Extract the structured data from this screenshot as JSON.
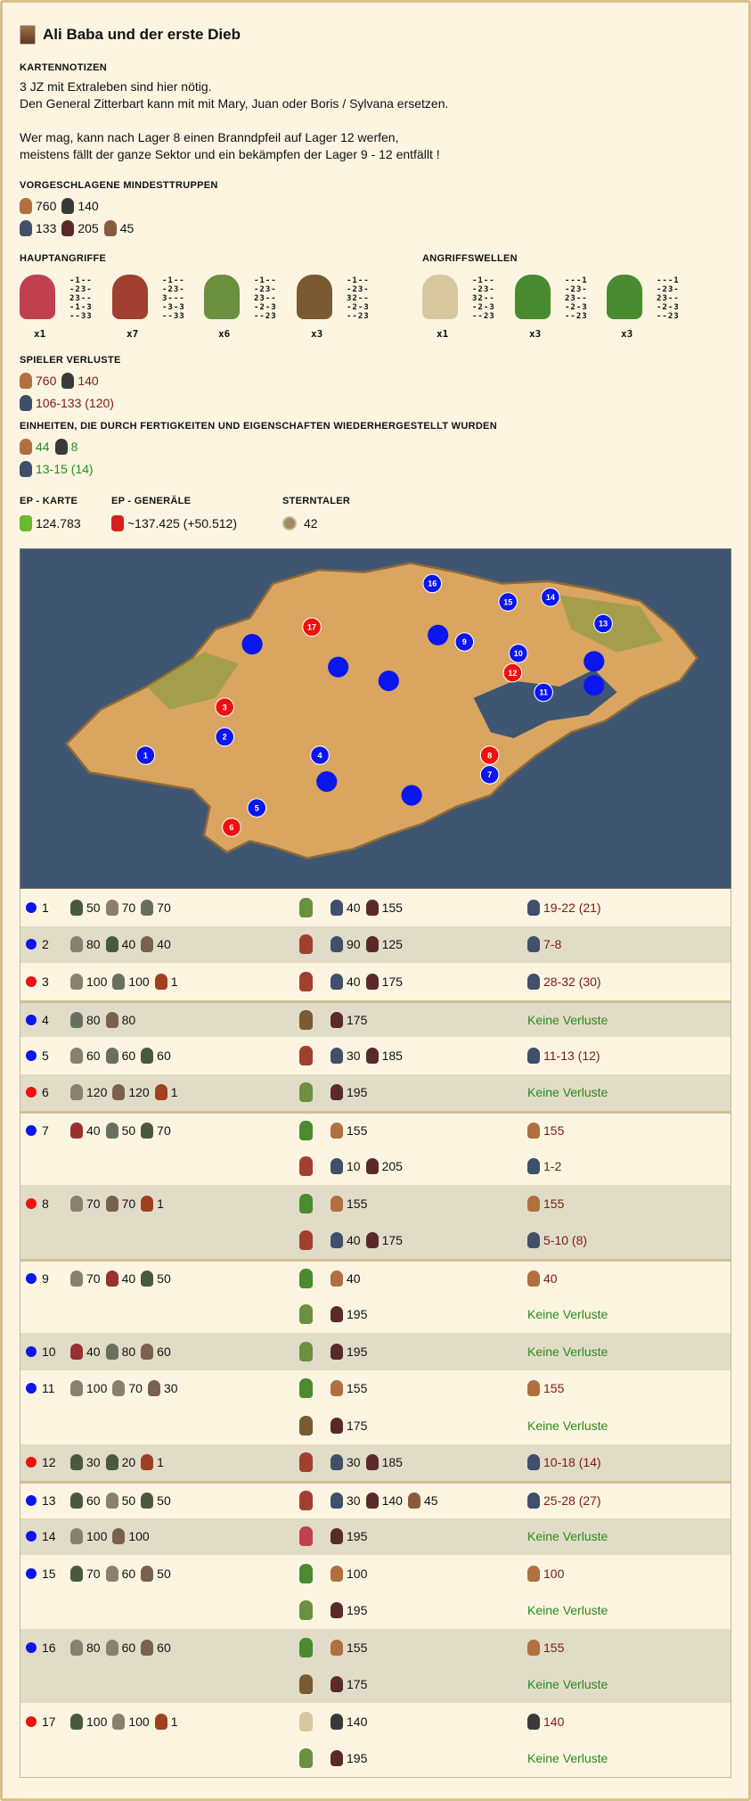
{
  "title": "Ali Baba und der erste Dieb",
  "notes": {
    "label": "KARTENNOTIZEN",
    "lines": [
      "3 JZ mit Extraleben sind hier nötig.",
      "Den General Zitterbart kann mit mit Mary, Juan oder Boris / Sylvana ersetzen.",
      "",
      "Wer mag, kann nach Lager 8 einen Branndpfeil auf Lager 12 werfen,",
      "meistens fällt der ganze Sektor und ein bekämpfen der Lager 9 - 12 entfällt !"
    ]
  },
  "min_troops": {
    "label": "VORGESCHLAGENE MINDESTTRUPPEN",
    "rows": [
      [
        {
          "unit": "recruit",
          "count": "760"
        },
        {
          "unit": "bowman",
          "count": "140"
        }
      ],
      [
        {
          "unit": "militia",
          "count": "133"
        },
        {
          "unit": "cavalry",
          "count": "205"
        },
        {
          "unit": "longbow",
          "count": "45"
        }
      ]
    ]
  },
  "main_attacks": {
    "label": "HAUPTANGRIFFE",
    "generals": [
      {
        "portrait": "general-red",
        "grid": [
          "-1--",
          "-23-",
          "23--",
          "-1-3",
          "--33"
        ],
        "mult": "x1"
      },
      {
        "portrait": "general-helmet",
        "grid": [
          "-1--",
          "-23-",
          "3---",
          "-3-3",
          "--33"
        ],
        "mult": "x7"
      },
      {
        "portrait": "general-woman",
        "grid": [
          "-1--",
          "-23-",
          "23--",
          "-2-3",
          "--23"
        ],
        "mult": "x6"
      },
      {
        "portrait": "general-old",
        "grid": [
          "-1--",
          "-23-",
          "32--",
          "-2-3",
          "--23"
        ],
        "mult": "x3"
      }
    ]
  },
  "waves": {
    "label": "ANGRIFFSWELLEN",
    "generals": [
      {
        "portrait": "general-viking",
        "grid": [
          "-1--",
          "-23-",
          "32--",
          "-2-3",
          "--23"
        ],
        "mult": "x1"
      },
      {
        "portrait": "general-green",
        "grid": [
          "---1",
          "-23-",
          "23--",
          "-2-3",
          "--23"
        ],
        "mult": "x3"
      },
      {
        "portrait": "general-green",
        "grid": [
          "---1",
          "-23-",
          "23--",
          "-2-3",
          "--23"
        ],
        "mult": "x3"
      }
    ]
  },
  "player_losses": {
    "label": "SPIELER VERLUSTE",
    "rows": [
      [
        {
          "unit": "recruit",
          "count": "760"
        },
        {
          "unit": "bowman",
          "count": "140"
        }
      ],
      [
        {
          "unit": "militia",
          "count": "106-133 (120)"
        }
      ]
    ]
  },
  "restored": {
    "label": "EINHEITEN, DIE DURCH FERTIGKEITEN UND EIGENSCHAFTEN WIEDERHERGESTELLT WURDEN",
    "rows": [
      [
        {
          "unit": "recruit",
          "count": "44"
        },
        {
          "unit": "bowman",
          "count": "8"
        }
      ],
      [
        {
          "unit": "militia",
          "count": "13-15 (14)"
        }
      ]
    ]
  },
  "stats": {
    "ep_map_label": "EP - KARTE",
    "ep_map": "124.783",
    "ep_gen_label": "EP - GENERÄLE",
    "ep_gen": "~137.425 (+50.512)",
    "star_label": "STERNTALER",
    "star": "42"
  },
  "colors": {
    "blue_camp": "#0a16f0",
    "red_camp": "#f01010",
    "loss": "#7a1a12",
    "no_loss": "#2a8a1a"
  },
  "map_markers": [
    "1",
    "2",
    "3",
    "4",
    "5",
    "6",
    "7",
    "8",
    "9",
    "10",
    "11",
    "12",
    "13",
    "14",
    "15",
    "16",
    "17"
  ],
  "camps": [
    {
      "num": "1",
      "color": "blue",
      "enemies": [
        [
          "e1",
          "50"
        ],
        [
          "e2",
          "70"
        ],
        [
          "e3",
          "70"
        ]
      ],
      "attacks": [
        {
          "gen": "woman",
          "troops": [
            [
              "militia",
              "40"
            ],
            [
              "cavalry",
              "155"
            ]
          ],
          "loss": [
            "militia",
            "19-22 (21)"
          ]
        }
      ]
    },
    {
      "num": "2",
      "color": "blue",
      "enemies": [
        [
          "e2",
          "80"
        ],
        [
          "e1",
          "40"
        ],
        [
          "e4",
          "40"
        ]
      ],
      "attacks": [
        {
          "gen": "helmet",
          "troops": [
            [
              "militia",
              "90"
            ],
            [
              "cavalry",
              "125"
            ]
          ],
          "loss": [
            "militia",
            "7-8"
          ]
        }
      ]
    },
    {
      "num": "3",
      "color": "red",
      "enemies": [
        [
          "e2",
          "100"
        ],
        [
          "e3",
          "100"
        ],
        [
          "boss",
          "1"
        ]
      ],
      "attacks": [
        {
          "gen": "helmet",
          "troops": [
            [
              "militia",
              "40"
            ],
            [
              "cavalry",
              "175"
            ]
          ],
          "loss": [
            "militia",
            "28-32 (30)"
          ]
        }
      ]
    },
    {
      "num": "4",
      "color": "blue",
      "enemies": [
        [
          "e3",
          "80"
        ],
        [
          "e4",
          "80"
        ]
      ],
      "attacks": [
        {
          "gen": "old",
          "troops": [
            [
              "cavalry",
              "175"
            ]
          ],
          "loss": null
        }
      ]
    },
    {
      "num": "5",
      "color": "blue",
      "enemies": [
        [
          "e2",
          "60"
        ],
        [
          "e3",
          "60"
        ],
        [
          "e1",
          "60"
        ]
      ],
      "attacks": [
        {
          "gen": "helmet",
          "troops": [
            [
              "militia",
              "30"
            ],
            [
              "cavalry",
              "185"
            ]
          ],
          "loss": [
            "militia",
            "11-13 (12)"
          ]
        }
      ]
    },
    {
      "num": "6",
      "color": "red",
      "enemies": [
        [
          "e2",
          "120"
        ],
        [
          "e4",
          "120"
        ],
        [
          "boss",
          "1"
        ]
      ],
      "attacks": [
        {
          "gen": "woman",
          "troops": [
            [
              "cavalry",
              "195"
            ]
          ],
          "loss": null
        }
      ]
    },
    {
      "num": "7",
      "color": "blue",
      "enemies": [
        [
          "e5",
          "40"
        ],
        [
          "e3",
          "50"
        ],
        [
          "e1",
          "70"
        ]
      ],
      "attacks": [
        {
          "gen": "green",
          "troops": [
            [
              "recruit",
              "155"
            ]
          ],
          "loss": [
            "recruit",
            "155"
          ]
        },
        {
          "gen": "helmet",
          "troops": [
            [
              "militia",
              "10"
            ],
            [
              "cavalry",
              "205"
            ]
          ],
          "loss": [
            "militia",
            "1-2"
          ]
        }
      ]
    },
    {
      "num": "8",
      "color": "red",
      "enemies": [
        [
          "e2",
          "70"
        ],
        [
          "e4",
          "70"
        ],
        [
          "boss",
          "1"
        ]
      ],
      "attacks": [
        {
          "gen": "green",
          "troops": [
            [
              "recruit",
              "155"
            ]
          ],
          "loss": [
            "recruit",
            "155"
          ]
        },
        {
          "gen": "helmet",
          "troops": [
            [
              "militia",
              "40"
            ],
            [
              "cavalry",
              "175"
            ]
          ],
          "loss": [
            "militia",
            "5-10 (8)"
          ]
        }
      ]
    },
    {
      "num": "9",
      "color": "blue",
      "enemies": [
        [
          "e2",
          "70"
        ],
        [
          "e5",
          "40"
        ],
        [
          "e1",
          "50"
        ]
      ],
      "attacks": [
        {
          "gen": "green",
          "troops": [
            [
              "recruit",
              "40"
            ]
          ],
          "loss": [
            "recruit",
            "40"
          ]
        },
        {
          "gen": "woman",
          "troops": [
            [
              "cavalry",
              "195"
            ]
          ],
          "loss": null
        }
      ]
    },
    {
      "num": "10",
      "color": "blue",
      "enemies": [
        [
          "e5",
          "40"
        ],
        [
          "e3",
          "80"
        ],
        [
          "e4",
          "60"
        ]
      ],
      "attacks": [
        {
          "gen": "woman",
          "troops": [
            [
              "cavalry",
              "195"
            ]
          ],
          "loss": null
        }
      ]
    },
    {
      "num": "11",
      "color": "blue",
      "enemies": [
        [
          "e2",
          "100"
        ],
        [
          "e2",
          "70"
        ],
        [
          "e4",
          "30"
        ]
      ],
      "attacks": [
        {
          "gen": "green",
          "troops": [
            [
              "recruit",
              "155"
            ]
          ],
          "loss": [
            "recruit",
            "155"
          ]
        },
        {
          "gen": "old",
          "troops": [
            [
              "cavalry",
              "175"
            ]
          ],
          "loss": null
        }
      ]
    },
    {
      "num": "12",
      "color": "red",
      "enemies": [
        [
          "e1",
          "30"
        ],
        [
          "e1",
          "20"
        ],
        [
          "boss",
          "1"
        ]
      ],
      "attacks": [
        {
          "gen": "helmet",
          "troops": [
            [
              "militia",
              "30"
            ],
            [
              "cavalry",
              "185"
            ]
          ],
          "loss": [
            "militia",
            "10-18 (14)"
          ]
        }
      ]
    },
    {
      "num": "13",
      "color": "blue",
      "enemies": [
        [
          "e1",
          "60"
        ],
        [
          "e2",
          "50"
        ],
        [
          "e1",
          "50"
        ]
      ],
      "attacks": [
        {
          "gen": "helmet",
          "troops": [
            [
              "militia",
              "30"
            ],
            [
              "cavalry",
              "140"
            ],
            [
              "longbow",
              "45"
            ]
          ],
          "loss": [
            "militia",
            "25-28 (27)"
          ]
        }
      ]
    },
    {
      "num": "14",
      "color": "blue",
      "enemies": [
        [
          "e2",
          "100"
        ],
        [
          "e4",
          "100"
        ]
      ],
      "attacks": [
        {
          "gen": "red",
          "troops": [
            [
              "cavalry",
              "195"
            ]
          ],
          "loss": null
        }
      ]
    },
    {
      "num": "15",
      "color": "blue",
      "enemies": [
        [
          "e1",
          "70"
        ],
        [
          "e2",
          "60"
        ],
        [
          "e4",
          "50"
        ]
      ],
      "attacks": [
        {
          "gen": "green",
          "troops": [
            [
              "recruit",
              "100"
            ]
          ],
          "loss": [
            "recruit",
            "100"
          ]
        },
        {
          "gen": "woman",
          "troops": [
            [
              "cavalry",
              "195"
            ]
          ],
          "loss": null
        }
      ]
    },
    {
      "num": "16",
      "color": "blue",
      "enemies": [
        [
          "e2",
          "80"
        ],
        [
          "e2",
          "60"
        ],
        [
          "e4",
          "60"
        ]
      ],
      "attacks": [
        {
          "gen": "green",
          "troops": [
            [
              "recruit",
              "155"
            ]
          ],
          "loss": [
            "recruit",
            "155"
          ]
        },
        {
          "gen": "old",
          "troops": [
            [
              "cavalry",
              "175"
            ]
          ],
          "loss": null
        }
      ]
    },
    {
      "num": "17",
      "color": "red",
      "enemies": [
        [
          "e1",
          "100"
        ],
        [
          "e2",
          "100"
        ],
        [
          "boss",
          "1"
        ]
      ],
      "attacks": [
        {
          "gen": "viking",
          "troops": [
            [
              "bowman",
              "140"
            ]
          ],
          "loss": [
            "bowman",
            "140"
          ]
        },
        {
          "gen": "woman",
          "troops": [
            [
              "cavalry",
              "195"
            ]
          ],
          "loss": null
        }
      ]
    }
  ],
  "no_loss_text": "Keine Verluste"
}
